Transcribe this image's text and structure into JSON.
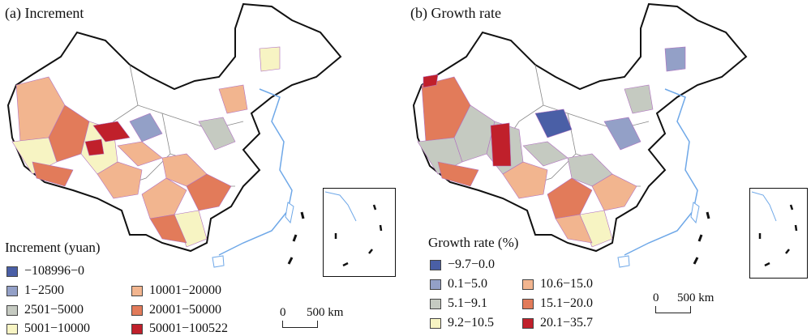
{
  "panels": [
    {
      "title": "(a) Increment",
      "legend_title": "Increment (yuan)",
      "legend": [
        {
          "label": "−108996−0",
          "color": "#4a5fa6"
        },
        {
          "label": "1−2500",
          "color": "#93a0c7"
        },
        {
          "label": "2501−5000",
          "color": "#c5cac1"
        },
        {
          "label": "5001−10000",
          "color": "#f7f4c3"
        },
        {
          "label": "10001−20000",
          "color": "#f2b58f"
        },
        {
          "label": "20001−50000",
          "color": "#e27b5a"
        },
        {
          "label": "50001−100522",
          "color": "#c0202b"
        }
      ],
      "scale": {
        "zero": "0",
        "label": "500 km"
      }
    },
    {
      "title": "(b) Growth rate",
      "legend_title": "Growth rate (%)",
      "legend": [
        {
          "label": "−9.7−0.0",
          "color": "#4a5fa6"
        },
        {
          "label": "0.1−5.0",
          "color": "#93a0c7"
        },
        {
          "label": "5.1−9.1",
          "color": "#c5cac1"
        },
        {
          "label": "9.2−10.5",
          "color": "#f7f4c3"
        },
        {
          "label": "10.6−15.0",
          "color": "#f2b58f"
        },
        {
          "label": "15.1−20.0",
          "color": "#e27b5a"
        },
        {
          "label": "20.1−35.7",
          "color": "#c0202b"
        }
      ],
      "scale": {
        "zero": "0",
        "label": "500 km"
      }
    }
  ]
}
